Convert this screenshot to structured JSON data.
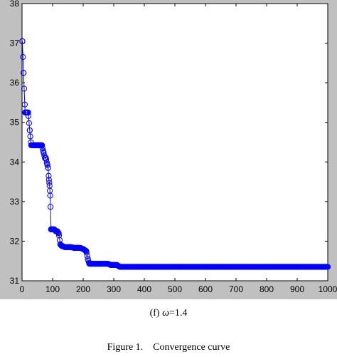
{
  "figure": {
    "subcaption_prefix": "(f) ",
    "subcaption_symbol": "ω",
    "subcaption_suffix": "=1.4",
    "caption": "Figure 1.    Convergence curve"
  },
  "colors": {
    "figure_bg": "#c0c0c0",
    "axes_bg": "#ffffff",
    "line": "#0000ff"
  },
  "chart_data": {
    "type": "line",
    "marker": "circle",
    "xlim": [
      0,
      1000
    ],
    "ylim": [
      31,
      38
    ],
    "xticks": [
      0,
      100,
      200,
      300,
      400,
      500,
      600,
      700,
      800,
      900,
      1000
    ],
    "yticks": [
      31,
      32,
      33,
      34,
      35,
      36,
      37,
      38
    ],
    "series": [
      {
        "x": [
          1,
          5,
          10,
          15,
          20,
          25,
          30,
          35,
          40,
          45,
          50,
          55,
          60,
          65,
          70,
          75,
          78,
          82,
          85,
          88,
          90,
          92,
          95,
          100,
          105,
          110,
          115,
          120,
          125,
          130,
          140,
          150,
          160,
          170,
          180,
          190,
          200,
          210,
          215,
          220,
          230,
          240,
          250,
          260,
          270,
          280,
          290,
          300,
          310,
          320,
          330,
          350,
          400,
          500,
          600,
          700,
          800,
          900,
          1000
        ],
        "y": [
          37.05,
          36.25,
          35.25,
          35.25,
          35.25,
          34.8,
          34.42,
          34.42,
          34.42,
          34.42,
          34.42,
          34.42,
          34.42,
          34.42,
          34.25,
          34.1,
          34.1,
          33.95,
          33.85,
          33.55,
          33.4,
          33.15,
          32.3,
          32.3,
          32.3,
          32.25,
          32.25,
          32.2,
          31.92,
          31.88,
          31.85,
          31.85,
          31.85,
          31.83,
          31.83,
          31.83,
          31.8,
          31.75,
          31.55,
          31.43,
          31.43,
          31.43,
          31.43,
          31.43,
          31.43,
          31.43,
          31.4,
          31.4,
          31.4,
          31.35,
          31.35,
          31.35,
          31.35,
          31.35,
          31.35,
          31.35,
          31.35,
          31.35,
          31.35
        ]
      }
    ]
  }
}
